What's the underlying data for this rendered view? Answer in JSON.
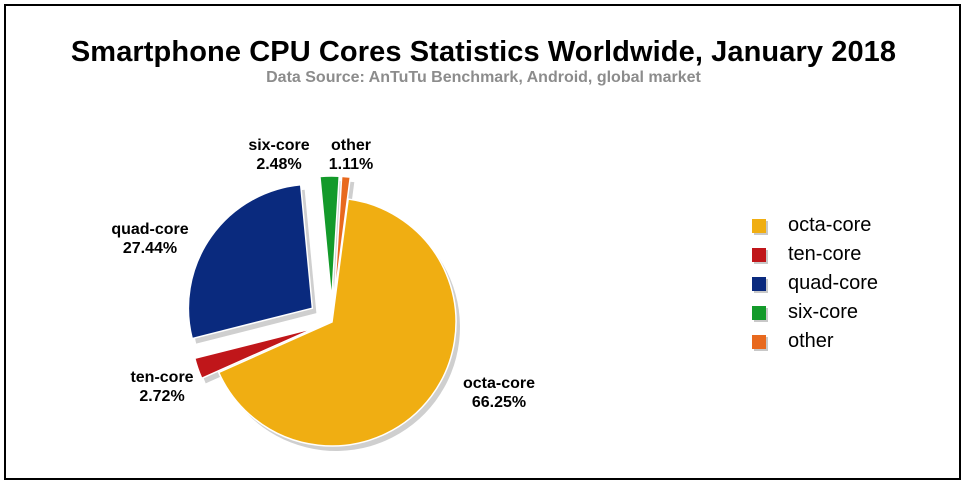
{
  "chart_data": {
    "type": "pie",
    "title": "Smartphone CPU Cores Statistics Worldwide, January 2018",
    "subtitle": "Data Source: AnTuTu Benchmark, Android, global market",
    "slices": [
      {
        "name": "octa-core",
        "value": 66.25,
        "label": "66.25%",
        "color": "#F0AE12"
      },
      {
        "name": "ten-core",
        "value": 2.72,
        "label": "2.72%",
        "color": "#C0161A"
      },
      {
        "name": "quad-core",
        "value": 27.44,
        "label": "27.44%",
        "color": "#0A2A7E"
      },
      {
        "name": "six-core",
        "value": 2.48,
        "label": "2.48%",
        "color": "#139A2A"
      },
      {
        "name": "other",
        "value": 1.11,
        "label": "1.11%",
        "color": "#E8691E"
      }
    ],
    "legend_position": "right"
  }
}
